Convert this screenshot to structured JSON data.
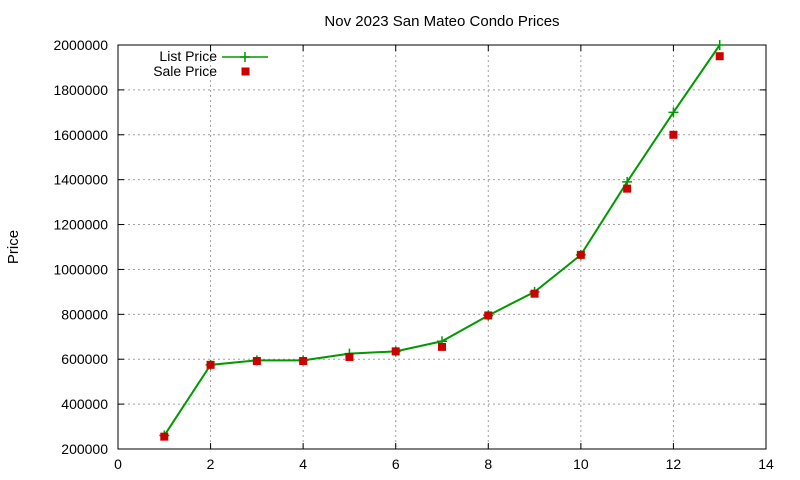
{
  "chart_data": {
    "type": "line",
    "title": "Nov 2023 San Mateo Condo Prices",
    "xlabel": "",
    "ylabel": "Price",
    "xlim": [
      0,
      14
    ],
    "ylim": [
      200000,
      2000000
    ],
    "x_ticks": [
      0,
      2,
      4,
      6,
      8,
      10,
      12,
      14
    ],
    "y_ticks": [
      200000,
      400000,
      600000,
      800000,
      1000000,
      1200000,
      1400000,
      1600000,
      1800000,
      2000000
    ],
    "grid": true,
    "legend_position": "top-left",
    "series": [
      {
        "name": "List Price",
        "style": "line-with-plus-markers",
        "color": "#009900",
        "x": [
          1,
          2,
          3,
          4,
          5,
          6,
          7,
          8,
          9,
          10,
          11,
          12,
          13
        ],
        "values": [
          260000,
          575000,
          595000,
          595000,
          625000,
          635000,
          680000,
          795000,
          900000,
          1065000,
          1390000,
          1700000,
          2000000
        ]
      },
      {
        "name": "Sale Price",
        "style": "square-markers",
        "color": "#cc0000",
        "x": [
          1,
          2,
          3,
          4,
          5,
          6,
          7,
          8,
          9,
          10,
          11,
          12,
          13
        ],
        "values": [
          255000,
          575000,
          592000,
          592000,
          610000,
          635000,
          655000,
          795000,
          892000,
          1065000,
          1360000,
          1600000,
          1950000
        ]
      }
    ]
  }
}
